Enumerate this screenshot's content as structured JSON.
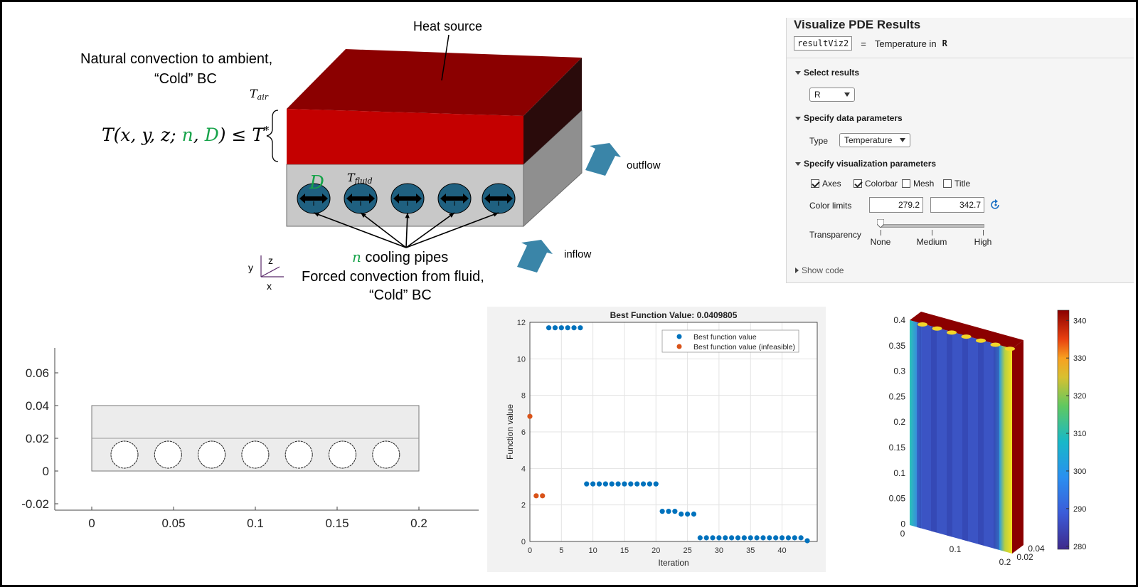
{
  "diagram": {
    "heat_source": "Heat source",
    "natural_line1": "Natural convection to ambient,",
    "natural_line2": "“Cold” BC",
    "t_air_base": "T",
    "t_air_sub": "air",
    "t_fluid_base": "T",
    "t_fluid_sub": "fluid",
    "equation_main": "T(x, y, z; ",
    "equation_n": "n",
    "equation_comma": ", ",
    "equation_d": "D",
    "equation_tail": ") ≤ T",
    "equation_star": "*",
    "d_label": "D",
    "n_label": "n",
    "cooling_pipes": " cooling pipes",
    "forced_line1": "Forced convection from fluid,",
    "forced_line2": "“Cold” BC",
    "outflow": "outflow",
    "inflow": "inflow",
    "axis_x": "x",
    "axis_y": "y",
    "axis_z": "z",
    "colors": {
      "red_top": "#8b0000",
      "red_front": "#c40000",
      "red_side": "#2a0b0b",
      "gray_front": "#c8c8c8",
      "gray_side": "#8f8f8f",
      "pipe": "#1f6080",
      "arrow": "#3a85a8",
      "green": "#17a34a"
    }
  },
  "pde_panel": {
    "title": "Visualize PDE Results",
    "var_name": "resultViz2",
    "equals": "=",
    "desc": "Temperature in",
    "desc_var": "R",
    "section_select": "Select results",
    "select_value": "R",
    "section_data": "Specify data parameters",
    "type_label": "Type",
    "type_value": "Temperature",
    "section_viz": "Specify visualization parameters",
    "checkboxes": [
      {
        "label": "Axes",
        "checked": true
      },
      {
        "label": "Colorbar",
        "checked": true
      },
      {
        "label": "Mesh",
        "checked": false
      },
      {
        "label": "Title",
        "checked": false
      }
    ],
    "color_limits_label": "Color limits",
    "color_min": "279.2",
    "color_max": "342.7",
    "transparency_label": "Transparency",
    "transparency_level": 0,
    "transparency_ticks": [
      "None",
      "Medium",
      "High"
    ],
    "show_code": "Show code"
  },
  "geometry_plot": {
    "x_ticks": [
      "0",
      "0.05",
      "0.1",
      "0.15",
      "0.2"
    ],
    "y_ticks": [
      "0.06",
      "0.04",
      "0.02",
      "0",
      "-0.02"
    ],
    "pipe_count": 7
  },
  "chart_data": [
    {
      "type": "scatter",
      "title": "Best Function Value: 0.0409805",
      "xlabel": "Iteration",
      "ylabel": "Function value",
      "xlim": [
        0,
        44
      ],
      "ylim": [
        0,
        12
      ],
      "x_ticks": [
        "0",
        "5",
        "10",
        "15",
        "20",
        "25",
        "30",
        "35",
        "40"
      ],
      "y_ticks": [
        "0",
        "2",
        "4",
        "6",
        "8",
        "10",
        "12"
      ],
      "grid": true,
      "legend_position": "top-right",
      "series": [
        {
          "name": "Best function value",
          "color": "#0072bd",
          "points": [
            [
              3,
              11.7
            ],
            [
              4,
              11.7
            ],
            [
              5,
              11.7
            ],
            [
              6,
              11.7
            ],
            [
              7,
              11.7
            ],
            [
              8,
              11.7
            ],
            [
              9,
              3.15
            ],
            [
              10,
              3.15
            ],
            [
              11,
              3.15
            ],
            [
              12,
              3.15
            ],
            [
              13,
              3.15
            ],
            [
              14,
              3.15
            ],
            [
              15,
              3.15
            ],
            [
              16,
              3.15
            ],
            [
              17,
              3.15
            ],
            [
              18,
              3.15
            ],
            [
              19,
              3.15
            ],
            [
              20,
              3.15
            ],
            [
              21,
              1.65
            ],
            [
              22,
              1.65
            ],
            [
              23,
              1.65
            ],
            [
              24,
              1.5
            ],
            [
              25,
              1.5
            ],
            [
              26,
              1.5
            ],
            [
              27,
              0.2
            ],
            [
              28,
              0.2
            ],
            [
              29,
              0.2
            ],
            [
              30,
              0.2
            ],
            [
              31,
              0.2
            ],
            [
              32,
              0.2
            ],
            [
              33,
              0.2
            ],
            [
              34,
              0.2
            ],
            [
              35,
              0.2
            ],
            [
              36,
              0.2
            ],
            [
              37,
              0.2
            ],
            [
              38,
              0.2
            ],
            [
              39,
              0.2
            ],
            [
              40,
              0.2
            ],
            [
              41,
              0.2
            ],
            [
              42,
              0.2
            ],
            [
              43,
              0.2
            ],
            [
              44,
              0.04
            ]
          ]
        },
        {
          "name": "Best function value (infeasible)",
          "color": "#d95319",
          "points": [
            [
              0,
              6.85
            ],
            [
              1,
              2.5
            ],
            [
              2,
              2.5
            ]
          ]
        }
      ]
    },
    {
      "type": "heatmap",
      "colorbar_ticks": [
        "340",
        "330",
        "320",
        "310",
        "300",
        "290",
        "280"
      ],
      "colorbar_range": [
        279.2,
        342.7
      ],
      "y_ticks": [
        "0.4",
        "0.35",
        "0.3",
        "0.25",
        "0.2",
        "0.15",
        "0.1",
        "0.05",
        "0"
      ],
      "x_ticks": [
        "0",
        "0.1",
        "0.2"
      ],
      "z_ticks": [
        "0.02",
        "0.04"
      ]
    }
  ]
}
